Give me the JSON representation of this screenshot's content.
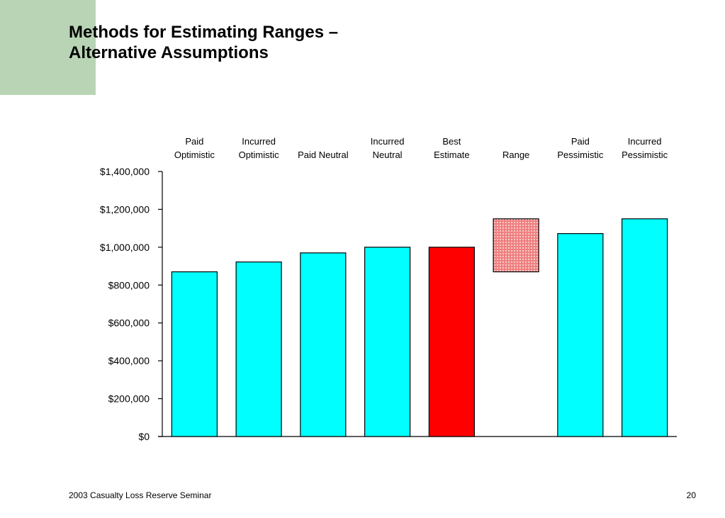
{
  "slide": {
    "title_lines": [
      "Methods for Estimating Ranges –",
      "Alternative Assumptions"
    ],
    "footer_left": "2003 Casualty Loss Reserve Seminar",
    "page_number": "20",
    "accent_color": "#b8d4b5"
  },
  "chart_data": {
    "type": "bar",
    "title": "",
    "xlabel": "",
    "ylabel": "",
    "categories": [
      [
        "Paid",
        "Optimistic"
      ],
      [
        "Incurred",
        "Optimistic"
      ],
      [
        "Paid Neutral"
      ],
      [
        "Incurred",
        "Neutral"
      ],
      [
        "Best",
        "Estimate"
      ],
      [
        "Range"
      ],
      [
        "Paid",
        "Pessimistic"
      ],
      [
        "Incurred",
        "Pessimistic"
      ]
    ],
    "values": [
      870000,
      922000,
      970000,
      1000000,
      1000000,
      null,
      1072000,
      1150000
    ],
    "range": {
      "category_index": 5,
      "low": 870000,
      "high": 1150000
    },
    "ylim": [
      0,
      1400000
    ],
    "yticks": [
      0,
      200000,
      400000,
      600000,
      800000,
      1000000,
      1200000,
      1400000
    ],
    "ytick_labels": [
      "$0",
      "$200,000",
      "$400,000",
      "$600,000",
      "$800,000",
      "$1,000,000",
      "$1,200,000",
      "$1,400,000"
    ],
    "x_labels_position": "top",
    "grid": false,
    "legend": false,
    "colors": {
      "default_bar": "#00ffff",
      "highlight_bar": "#ff0000",
      "range_fill": "#f08080",
      "highlight_index": 4
    }
  }
}
